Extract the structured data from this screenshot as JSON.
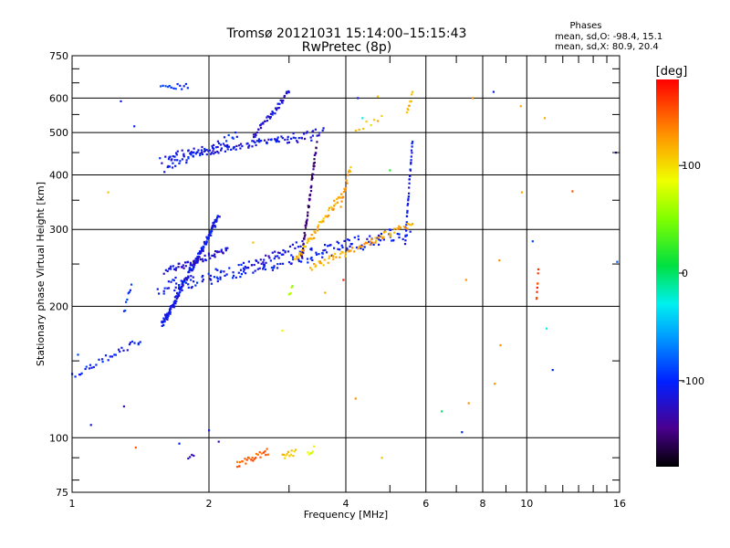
{
  "chart_data": {
    "type": "scatter",
    "title": "Tromsø 20121031 15:14:00–15:15:43",
    "subtitle": "RwPretec (8p)",
    "xlabel": "Frequency [MHz]",
    "ylabel": "Stationary phase Virtual Height [km]",
    "x_scale": "log",
    "y_scale": "log",
    "xlim": [
      1,
      16
    ],
    "ylim": [
      75,
      750
    ],
    "x_ticks": [
      1,
      2,
      4,
      6,
      8,
      10,
      16
    ],
    "x_tick_labels": [
      "1",
      "2",
      "4",
      "6",
      "8",
      "10",
      "16"
    ],
    "y_ticks": [
      75,
      100,
      200,
      300,
      400,
      500,
      600,
      750
    ],
    "y_tick_labels": [
      "75",
      "100",
      "200",
      "300",
      "400",
      "500",
      "600",
      "750"
    ],
    "grid": true,
    "phase_legend": {
      "title": "Phases",
      "line_o": "mean, sd,O: -98.4, 15.1",
      "line_x": "mean, sd,X:  80.9, 20.4"
    },
    "colorbar": {
      "label": "[deg]",
      "range": [
        -180,
        180
      ],
      "ticks": [
        100,
        0,
        -100
      ],
      "tick_labels": [
        "100",
        "0",
        "-100"
      ]
    },
    "traces": [
      {
        "f0": 1.58,
        "f1": 3.55,
        "h0": 432,
        "h1": 505,
        "phase": -110,
        "n": 70
      },
      {
        "f0": 1.6,
        "f1": 3.5,
        "h0": 445,
        "h1": 490,
        "phase": -115,
        "n": 55
      },
      {
        "f0": 1.6,
        "f1": 2.3,
        "h0": 412,
        "h1": 495,
        "phase": -105,
        "n": 40
      },
      {
        "f0": 2.5,
        "f1": 3.0,
        "h0": 490,
        "h1": 620,
        "phase": -120,
        "n": 45
      },
      {
        "f0": 1.57,
        "f1": 1.8,
        "h0": 640,
        "h1": 640,
        "phase": -95,
        "n": 14
      },
      {
        "f0": 1.55,
        "f1": 5.5,
        "h0": 215,
        "h1": 292,
        "phase": -105,
        "n": 110
      },
      {
        "f0": 1.6,
        "f1": 5.4,
        "h0": 225,
        "h1": 300,
        "phase": -110,
        "n": 80
      },
      {
        "f0": 1.58,
        "f1": 2.1,
        "h0": 182,
        "h1": 320,
        "phase": -110,
        "n": 180
      },
      {
        "f0": 1.6,
        "f1": 2.2,
        "h0": 240,
        "h1": 270,
        "phase": -120,
        "n": 60
      },
      {
        "f0": 1.02,
        "f1": 1.42,
        "h0": 140,
        "h1": 168,
        "phase": -105,
        "n": 32
      },
      {
        "f0": 1.3,
        "f1": 1.35,
        "h0": 195,
        "h1": 225,
        "phase": -100,
        "n": 8
      },
      {
        "f0": 2.4,
        "f1": 3.2,
        "h0": 245,
        "h1": 280,
        "phase": -120,
        "n": 30
      },
      {
        "f0": 3.2,
        "f1": 3.45,
        "h0": 260,
        "h1": 470,
        "phase": -150,
        "n": 60
      },
      {
        "f0": 5.4,
        "f1": 5.6,
        "h0": 280,
        "h1": 480,
        "phase": -110,
        "n": 35
      },
      {
        "f0": 3.35,
        "f1": 5.6,
        "h0": 245,
        "h1": 310,
        "phase": 120,
        "n": 70
      },
      {
        "f0": 3.1,
        "f1": 3.9,
        "h0": 255,
        "h1": 360,
        "phase": 115,
        "n": 55
      },
      {
        "f0": 3.9,
        "f1": 4.1,
        "h0": 340,
        "h1": 420,
        "phase": 120,
        "n": 15
      },
      {
        "f0": 5.45,
        "f1": 5.6,
        "h0": 560,
        "h1": 610,
        "phase": 118,
        "n": 10
      },
      {
        "f0": 4.2,
        "f1": 4.8,
        "h0": 510,
        "h1": 540,
        "phase": 115,
        "n": 8
      },
      {
        "f0": 3.0,
        "f1": 3.05,
        "h0": 210,
        "h1": 225,
        "phase": 60,
        "n": 5
      },
      {
        "f0": 2.3,
        "f1": 2.7,
        "h0": 87,
        "h1": 93,
        "phase": 150,
        "n": 26
      },
      {
        "f0": 2.9,
        "f1": 3.1,
        "h0": 90,
        "h1": 93,
        "phase": 110,
        "n": 12
      },
      {
        "f0": 3.3,
        "f1": 3.4,
        "h0": 92,
        "h1": 94,
        "phase": 80,
        "n": 6
      },
      {
        "f0": 1.8,
        "f1": 1.85,
        "h0": 90,
        "h1": 92,
        "phase": -140,
        "n": 4
      },
      {
        "f0": 10.5,
        "f1": 10.6,
        "h0": 205,
        "h1": 240,
        "phase": 160,
        "n": 8
      }
    ],
    "points": [
      {
        "x": 1.0,
        "y": 140,
        "phase": -100
      },
      {
        "x": 1.03,
        "y": 155,
        "phase": -90
      },
      {
        "x": 1.1,
        "y": 107,
        "phase": -110
      },
      {
        "x": 1.2,
        "y": 365,
        "phase": 110
      },
      {
        "x": 1.28,
        "y": 590,
        "phase": -110
      },
      {
        "x": 1.3,
        "y": 118,
        "phase": -120
      },
      {
        "x": 1.37,
        "y": 517,
        "phase": -100
      },
      {
        "x": 1.38,
        "y": 95,
        "phase": 150
      },
      {
        "x": 1.72,
        "y": 97,
        "phase": -100
      },
      {
        "x": 2.0,
        "y": 104,
        "phase": -110
      },
      {
        "x": 2.1,
        "y": 98,
        "phase": -120
      },
      {
        "x": 2.5,
        "y": 280,
        "phase": 110
      },
      {
        "x": 2.9,
        "y": 176,
        "phase": 90
      },
      {
        "x": 3.6,
        "y": 215,
        "phase": 120
      },
      {
        "x": 3.95,
        "y": 230,
        "phase": 170
      },
      {
        "x": 4.2,
        "y": 123,
        "phase": 130
      },
      {
        "x": 4.25,
        "y": 600,
        "phase": -110
      },
      {
        "x": 4.35,
        "y": 540,
        "phase": -30
      },
      {
        "x": 4.7,
        "y": 605,
        "phase": 110
      },
      {
        "x": 4.8,
        "y": 90,
        "phase": 110
      },
      {
        "x": 5.0,
        "y": 410,
        "phase": 20
      },
      {
        "x": 6.5,
        "y": 115,
        "phase": 0
      },
      {
        "x": 7.2,
        "y": 103,
        "phase": -100
      },
      {
        "x": 7.35,
        "y": 230,
        "phase": 130
      },
      {
        "x": 7.45,
        "y": 120,
        "phase": 130
      },
      {
        "x": 7.6,
        "y": 600,
        "phase": 130
      },
      {
        "x": 8.45,
        "y": 620,
        "phase": -100
      },
      {
        "x": 8.5,
        "y": 133,
        "phase": 130
      },
      {
        "x": 8.7,
        "y": 255,
        "phase": 130
      },
      {
        "x": 8.75,
        "y": 163,
        "phase": 130
      },
      {
        "x": 9.7,
        "y": 575,
        "phase": 120
      },
      {
        "x": 9.75,
        "y": 365,
        "phase": 120
      },
      {
        "x": 10.3,
        "y": 282,
        "phase": -90
      },
      {
        "x": 10.95,
        "y": 540,
        "phase": 120
      },
      {
        "x": 11.05,
        "y": 178,
        "phase": -30
      },
      {
        "x": 11.4,
        "y": 143,
        "phase": -100
      },
      {
        "x": 12.6,
        "y": 367,
        "phase": 150
      },
      {
        "x": 15.7,
        "y": 450,
        "phase": -120
      },
      {
        "x": 15.8,
        "y": 253,
        "phase": -80
      }
    ]
  }
}
